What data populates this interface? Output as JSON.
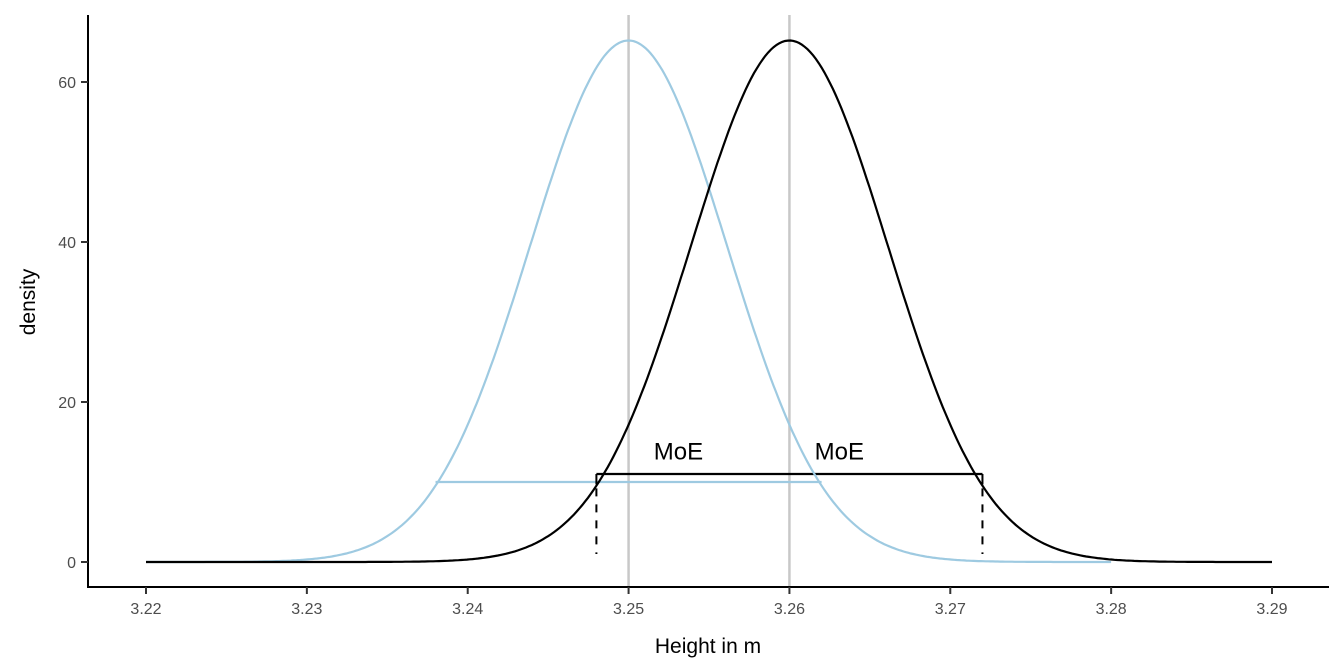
{
  "chart_data": {
    "type": "line",
    "title": "",
    "xlabel": "Height in m",
    "ylabel": "density",
    "xlim": [
      3.2165,
      3.2935
    ],
    "ylim": [
      -3.2,
      68.6
    ],
    "xticks": [
      "3.22",
      "3.23",
      "3.24",
      "3.25",
      "3.26",
      "3.27",
      "3.28",
      "3.29"
    ],
    "yticks": [
      "0",
      "20",
      "40",
      "60"
    ],
    "grid": false,
    "series": [
      {
        "distribution": "normal",
        "mean": 3.25,
        "sd": 0.00612,
        "x_range": [
          3.22,
          3.28
        ],
        "color": "#9ecae1"
      },
      {
        "distribution": "normal",
        "mean": 3.26,
        "sd": 0.00612,
        "x_range": [
          3.22,
          3.29
        ],
        "color": "#000000"
      }
    ],
    "vlines": [
      {
        "x": 3.25,
        "color": "#c8c8c8"
      },
      {
        "x": 3.26,
        "color": "#c8c8c8"
      }
    ],
    "segments": [
      {
        "x": [
          3.238,
          3.262
        ],
        "y": [
          10,
          10
        ],
        "color": "#9ecae1"
      },
      {
        "x": [
          3.248,
          3.272
        ],
        "y": [
          11,
          11
        ],
        "color": "#000000"
      }
    ],
    "dashed_lines": [
      {
        "x": 3.248,
        "y": [
          1,
          11
        ]
      },
      {
        "x": 3.272,
        "y": [
          1,
          11
        ]
      }
    ],
    "annotations": [
      {
        "text": "MoE",
        "x": 3.2531,
        "y": 12.8
      },
      {
        "text": "MoE",
        "x": 3.2631,
        "y": 12.8
      }
    ]
  }
}
